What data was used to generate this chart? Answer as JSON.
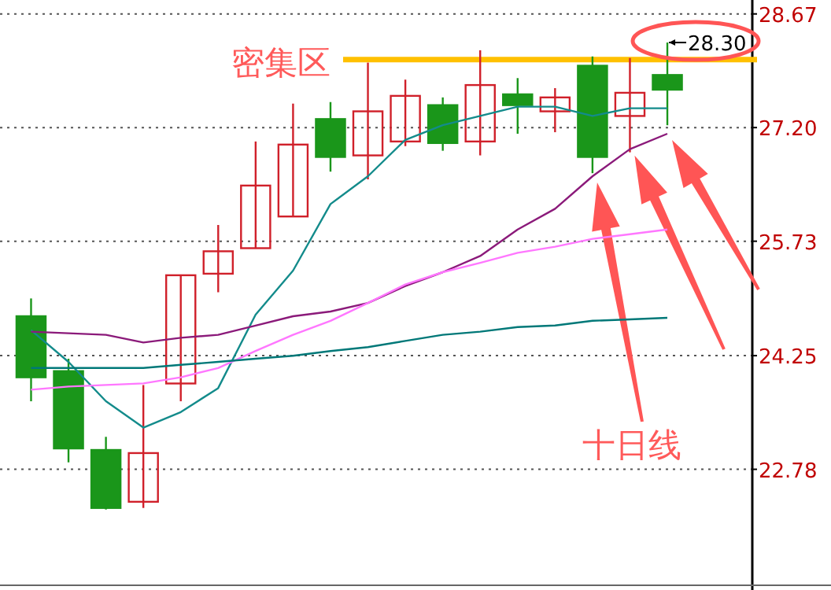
{
  "chart_data": {
    "type": "candlestick",
    "categories": [
      null,
      null,
      null,
      null,
      null,
      null,
      null,
      null,
      null,
      null,
      null,
      null,
      null,
      null,
      null,
      null,
      null,
      null
    ],
    "ohlc": [
      [
        24.76,
        24.99,
        23.66,
        23.97
      ],
      [
        24.05,
        24.21,
        22.87,
        23.05
      ],
      [
        23.03,
        23.2,
        22.26,
        22.28
      ],
      [
        22.36,
        23.87,
        22.28,
        22.99
      ],
      [
        23.89,
        25.29,
        23.66,
        25.29
      ],
      [
        25.31,
        25.94,
        25.07,
        25.6
      ],
      [
        25.64,
        27.02,
        25.64,
        26.45
      ],
      [
        26.05,
        27.51,
        26.05,
        26.98
      ],
      [
        27.31,
        27.53,
        26.63,
        26.82
      ],
      [
        26.84,
        28.04,
        26.53,
        27.41
      ],
      [
        27.02,
        27.82,
        26.96,
        27.61
      ],
      [
        27.49,
        27.59,
        26.9,
        27.0
      ],
      [
        27.02,
        28.2,
        26.84,
        27.75
      ],
      [
        27.63,
        27.84,
        27.12,
        27.49
      ],
      [
        27.41,
        27.71,
        27.14,
        27.59
      ],
      [
        28.0,
        28.12,
        26.61,
        26.82
      ],
      [
        27.35,
        28.1,
        26.88,
        27.65
      ],
      [
        27.88,
        28.3,
        27.23,
        27.69
      ]
    ],
    "colors": [
      "#1a961a",
      "#1a961a",
      "#1a961a",
      "#d0202a",
      "#d0202a",
      "#d0202a",
      "#d0202a",
      "#d0202a",
      "#1a961a",
      "#d0202a",
      "#d0202a",
      "#1a961a",
      "#d0202a",
      "#1a961a",
      "#d0202a",
      "#1a961a",
      "#d0202a",
      "#1a961a"
    ],
    "series": [
      {
        "type": "line",
        "color": "#138b8b",
        "values": [
          24.58,
          24.17,
          23.66,
          23.32,
          23.52,
          23.83,
          24.78,
          25.35,
          26.21,
          26.57,
          27.04,
          27.23,
          27.35,
          27.47,
          27.47,
          27.35,
          27.45,
          27.45
        ]
      },
      {
        "type": "line",
        "color": "#8b1a7a",
        "values": [
          24.56,
          24.54,
          24.52,
          24.42,
          24.48,
          24.52,
          24.64,
          24.76,
          24.82,
          24.93,
          25.15,
          25.33,
          25.54,
          25.88,
          26.15,
          26.57,
          26.92,
          27.12
        ]
      },
      {
        "type": "line",
        "color": "#ff77ff",
        "values": [
          23.81,
          23.85,
          23.87,
          23.89,
          23.97,
          24.09,
          24.31,
          24.52,
          24.7,
          24.93,
          25.17,
          25.33,
          25.45,
          25.58,
          25.66,
          25.76,
          25.82,
          25.88
        ]
      },
      {
        "type": "line",
        "color": "#007878",
        "values": [
          24.09,
          24.09,
          24.09,
          24.09,
          24.13,
          24.17,
          24.21,
          24.25,
          24.31,
          24.36,
          24.44,
          24.52,
          24.56,
          24.62,
          24.64,
          24.7,
          24.72,
          24.74
        ]
      }
    ],
    "ylim": [
      21.28,
      28.85
    ],
    "yticks": [
      {
        "value": 22.78,
        "label": "22.78"
      },
      {
        "value": 24.25,
        "label": "24.25"
      },
      {
        "value": 25.73,
        "label": "25.73"
      },
      {
        "value": 27.2,
        "label": "27.20"
      },
      {
        "value": 28.67,
        "label": "28.67"
      }
    ],
    "grid": "y",
    "tick_labels": "y",
    "ref_lines": [
      {
        "axis": "y",
        "value": 28.08,
        "label": "密集区",
        "color": "#ffc000"
      }
    ],
    "annotations": [
      "十日线",
      "28.30"
    ]
  }
}
